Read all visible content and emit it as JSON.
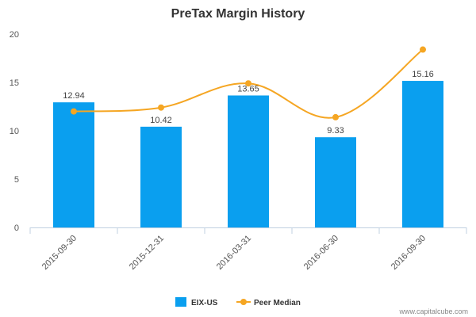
{
  "chart_data": {
    "type": "bar",
    "title": "PreTax Margin History",
    "categories": [
      "2015-09-30",
      "2015-12-31",
      "2016-03-31",
      "2016-06-30",
      "2016-09-30"
    ],
    "series": [
      {
        "name": "EIX-US",
        "type": "bar",
        "color": "#0a9fef",
        "values": [
          12.94,
          10.42,
          13.65,
          9.33,
          15.16
        ],
        "data_labels": [
          "12.94",
          "10.42",
          "13.65",
          "9.33",
          "15.16"
        ]
      },
      {
        "name": "Peer Median",
        "type": "line",
        "color": "#f5a623",
        "values": [
          12.0,
          12.4,
          14.9,
          11.4,
          18.4
        ]
      }
    ],
    "ylim": [
      0,
      20
    ],
    "yticks": [
      0,
      5,
      10,
      15,
      20
    ],
    "ytick_labels": [
      "0",
      "5",
      "10",
      "15",
      "20"
    ],
    "xlabel": "",
    "ylabel": "",
    "grid": false,
    "legend_position": "bottom-center"
  },
  "footer": {
    "credit": "www.capitalcube.com"
  }
}
